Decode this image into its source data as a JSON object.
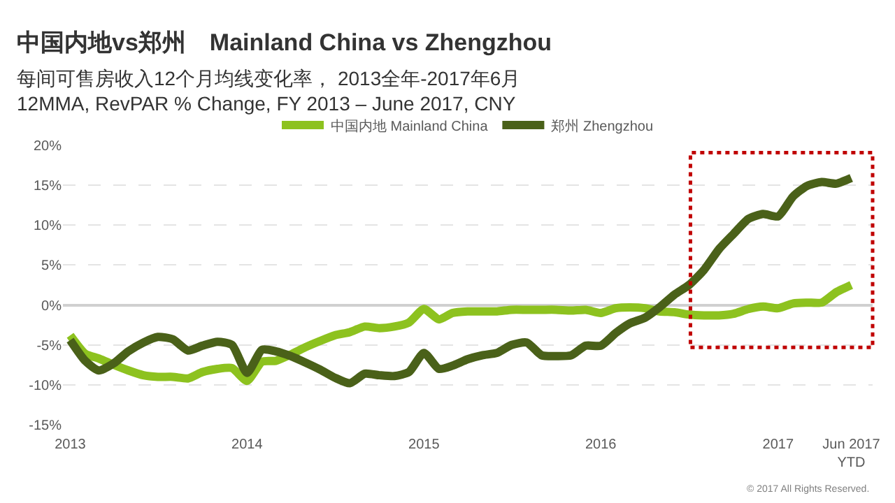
{
  "chart_data": {
    "type": "line",
    "title": "中国内地vs郑州　Mainland China vs Zhengzhou",
    "subtitle": "每间可售房收入12个月均线变化率， 2013全年-2017年6月\n12MMA, RevPAR % Change, FY 2013 – June 2017, CNY",
    "x": [
      "2013-01",
      "2013-02",
      "2013-03",
      "2013-04",
      "2013-05",
      "2013-06",
      "2013-07",
      "2013-08",
      "2013-09",
      "2013-10",
      "2013-11",
      "2013-12",
      "2014-01",
      "2014-02",
      "2014-03",
      "2014-04",
      "2014-05",
      "2014-06",
      "2014-07",
      "2014-08",
      "2014-09",
      "2014-10",
      "2014-11",
      "2014-12",
      "2015-01",
      "2015-02",
      "2015-03",
      "2015-04",
      "2015-05",
      "2015-06",
      "2015-07",
      "2015-08",
      "2015-09",
      "2015-10",
      "2015-11",
      "2015-12",
      "2016-01",
      "2016-02",
      "2016-03",
      "2016-04",
      "2016-05",
      "2016-06",
      "2016-07",
      "2016-08",
      "2016-09",
      "2016-10",
      "2016-11",
      "2016-12",
      "2017-01",
      "2017-02",
      "2017-03",
      "2017-04",
      "2017-05",
      "2017-06"
    ],
    "series": [
      {
        "name": "中国内地 Mainland China",
        "color": "#8dc21f",
        "values": [
          -3.8,
          -6.1,
          -6.7,
          -7.5,
          -8.2,
          -8.8,
          -9.0,
          -9.0,
          -9.2,
          -8.4,
          -8.0,
          -7.9,
          -9.5,
          -7.1,
          -7.0,
          -6.2,
          -5.3,
          -4.5,
          -3.8,
          -3.4,
          -2.7,
          -2.9,
          -2.7,
          -2.2,
          -0.5,
          -1.8,
          -1.0,
          -0.8,
          -0.8,
          -0.8,
          -0.6,
          -0.6,
          -0.6,
          -0.6,
          -0.7,
          -0.6,
          -1.0,
          -0.4,
          -0.3,
          -0.4,
          -0.8,
          -0.9,
          -1.2,
          -1.3,
          -1.3,
          -1.1,
          -0.5,
          -0.2,
          -0.4,
          0.2,
          0.3,
          0.3,
          1.6,
          2.5
        ]
      },
      {
        "name": "郑州 Zhengzhou",
        "color": "#4a6119",
        "values": [
          -4.4,
          -7.0,
          -8.2,
          -7.3,
          -5.8,
          -4.7,
          -4.0,
          -4.3,
          -5.7,
          -5.1,
          -4.6,
          -5.0,
          -8.5,
          -5.6,
          -5.8,
          -6.4,
          -7.2,
          -8.1,
          -9.1,
          -9.8,
          -8.6,
          -8.8,
          -8.9,
          -8.4,
          -6.0,
          -8.0,
          -7.6,
          -6.8,
          -6.3,
          -6.0,
          -5.0,
          -4.7,
          -6.3,
          -6.4,
          -6.3,
          -5.1,
          -5.1,
          -3.5,
          -2.3,
          -1.6,
          -0.3,
          1.3,
          2.5,
          4.4,
          7.0,
          8.9,
          10.8,
          11.4,
          11.1,
          13.6,
          14.9,
          15.4,
          15.2,
          15.9
        ]
      }
    ],
    "xlim": [
      "2012-12-17",
      "2017-07-15"
    ],
    "xticks": [
      {
        "value": "2013-01",
        "label": "2013"
      },
      {
        "value": "2014-01",
        "label": "2014"
      },
      {
        "value": "2015-01",
        "label": "2015"
      },
      {
        "value": "2016-01",
        "label": "2016"
      },
      {
        "value": "2017-01",
        "label": "2017"
      },
      {
        "value": "2017-06",
        "label": "Jun 2017\nYTD"
      }
    ],
    "ylim": [
      -15,
      20
    ],
    "yticks": [
      {
        "value": -15,
        "label": "-15%"
      },
      {
        "value": -10,
        "label": "-10%"
      },
      {
        "value": -5,
        "label": "-5%"
      },
      {
        "value": 0,
        "label": "0%"
      },
      {
        "value": 5,
        "label": "5%"
      },
      {
        "value": 10,
        "label": "10%"
      },
      {
        "value": 15,
        "label": "15%"
      },
      {
        "value": 20,
        "label": "20%"
      }
    ],
    "annotations": [
      "© 2017 All Rights Reserved."
    ],
    "grid": "y",
    "legend": "top",
    "marker": "none",
    "line_style": "solid"
  }
}
